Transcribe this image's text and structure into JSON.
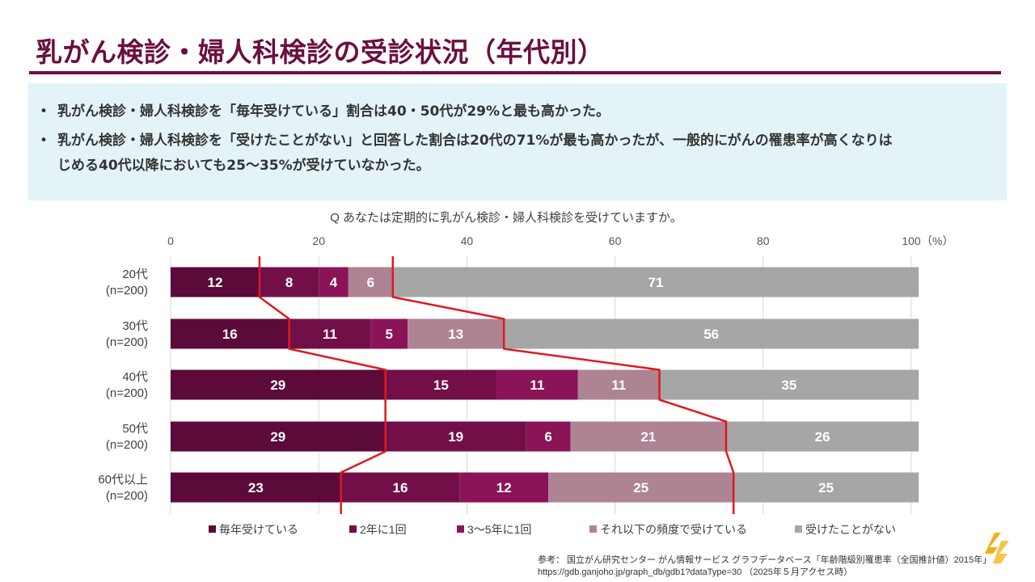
{
  "header": {
    "title": "乳がん検診・婦人科検診の受診状況（年代別）"
  },
  "summary": {
    "bullets": [
      "乳がん検診・婦人科検診を「毎年受けている」割合は40・50代が29%と最も高かった。",
      "乳がん検診・婦人科検診を「受けたことがない」と回答した割合は20代の71%が最も高かったが、一般的にがんの罹患率が高くなりは",
      "じめる40代以降においても25～35%が受けていなかった。"
    ]
  },
  "chart_data": {
    "type": "bar",
    "orientation": "horizontal",
    "stacked": true,
    "title": "Q あなたは定期的に乳がん検診・婦人科検診を受けていますか。",
    "axis": {
      "ticks": [
        0,
        20,
        40,
        60,
        80,
        100
      ],
      "unit": "（%）",
      "range": [
        0,
        100
      ]
    },
    "categories": [
      {
        "label": "20代",
        "n": "(n=200)"
      },
      {
        "label": "30代",
        "n": "(n=200)"
      },
      {
        "label": "40代",
        "n": "(n=200)"
      },
      {
        "label": "50代",
        "n": "(n=200)"
      },
      {
        "label": "60代以上",
        "n": "(n=200)"
      }
    ],
    "series": [
      {
        "name": "毎年受けている",
        "color": "#5c0a3a",
        "values": [
          12,
          16,
          29,
          29,
          23
        ]
      },
      {
        "name": "2年に1回",
        "color": "#730f48",
        "values": [
          8,
          11,
          15,
          19,
          16
        ]
      },
      {
        "name": "3～5年に1回",
        "color": "#8a1457",
        "values": [
          4,
          5,
          11,
          6,
          12
        ]
      },
      {
        "name": "それ以下の頻度で受けている",
        "color": "#ae8393",
        "values": [
          6,
          13,
          11,
          21,
          25
        ]
      },
      {
        "name": "受けたことがない",
        "color": "#a6a6a6",
        "values": [
          71,
          56,
          35,
          26,
          25
        ]
      }
    ],
    "annotation_line_color": "#e0191e"
  },
  "footnote": {
    "line1": "参考：  国立がん研究センター がん情報サービス グラフデータベース「年齢階級別罹患率（全国推計値）2015年」",
    "line2": "https://gdb.ganjoho.jp/graph_db/gdb1?dataType=30 （2025年５月アクセス時）"
  },
  "colors": {
    "brand": "#6b0f3f",
    "panel": "#e3f3f7"
  }
}
